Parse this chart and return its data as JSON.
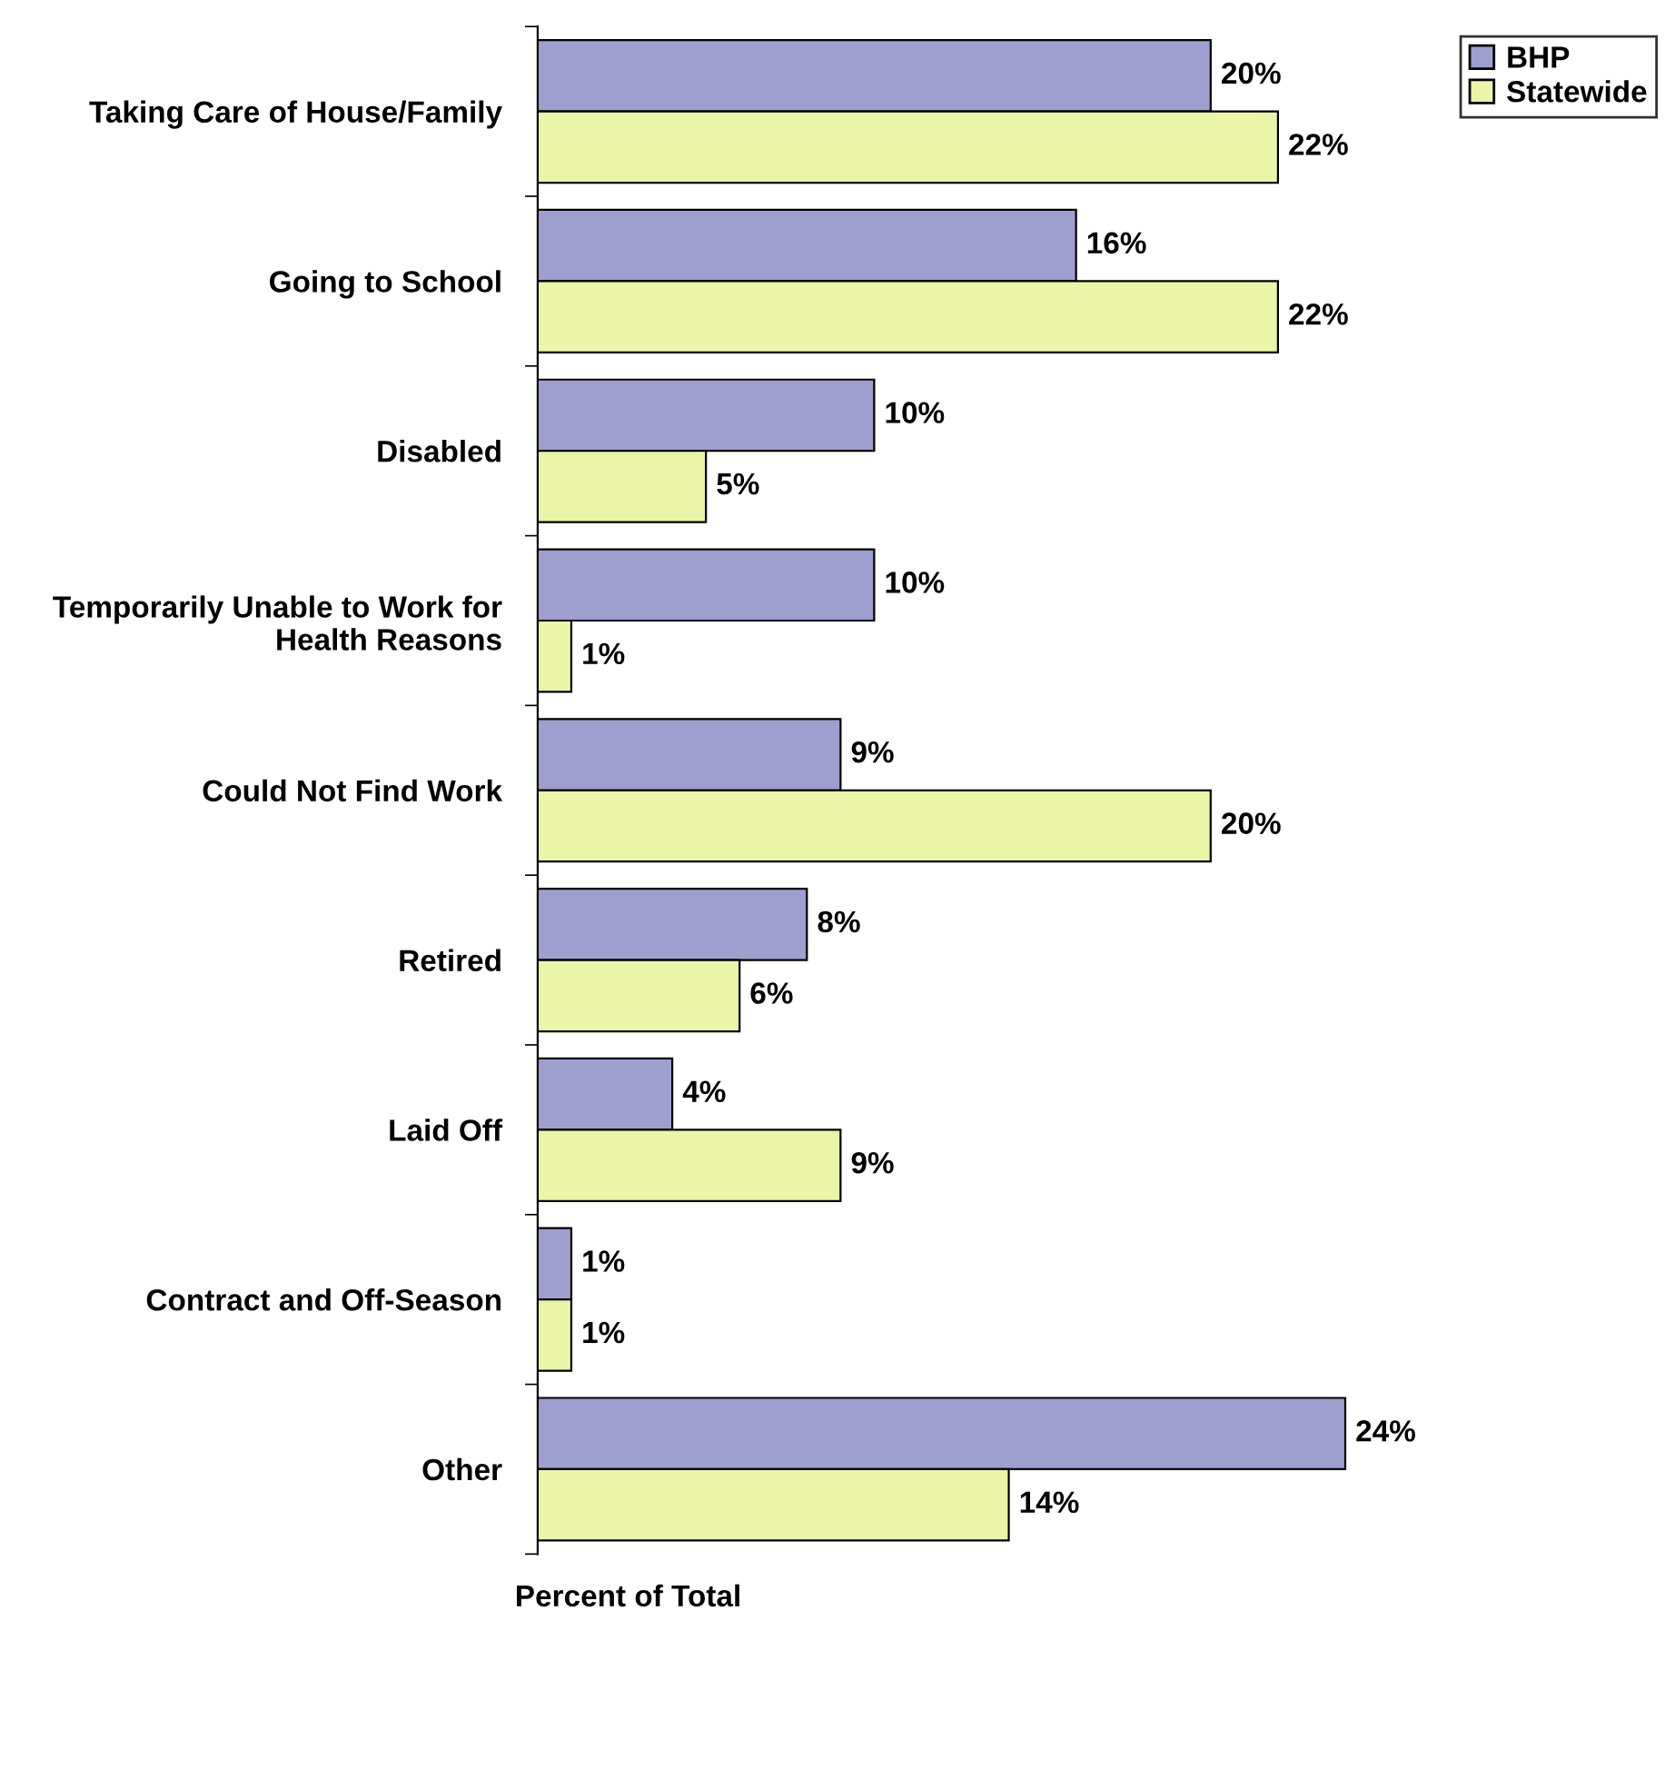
{
  "chart_data": {
    "type": "bar",
    "orientation": "horizontal",
    "xlabel": "Percent of Total",
    "categories": [
      "Taking Care of House/Family",
      "Going to School",
      "Disabled",
      "Temporarily Unable to Work for Health Reasons",
      "Could Not Find Work",
      "Retired",
      "Laid Off",
      "Contract and Off-Season",
      "Other"
    ],
    "series": [
      {
        "name": "BHP",
        "color": "#9f9fcf",
        "values": [
          20,
          16,
          10,
          10,
          9,
          8,
          4,
          1,
          24
        ],
        "value_labels": [
          "20%",
          "16%",
          "10%",
          "10%",
          "9%",
          "8%",
          "4%",
          "1%",
          "24%"
        ]
      },
      {
        "name": "Statewide",
        "color": "#eaf5a8",
        "values": [
          22,
          22,
          5,
          1,
          20,
          6,
          9,
          1,
          14
        ],
        "value_labels": [
          "22%",
          "22%",
          "5%",
          "1%",
          "20%",
          "6%",
          "9%",
          "1%",
          "14%"
        ]
      }
    ],
    "legend": "top right"
  }
}
